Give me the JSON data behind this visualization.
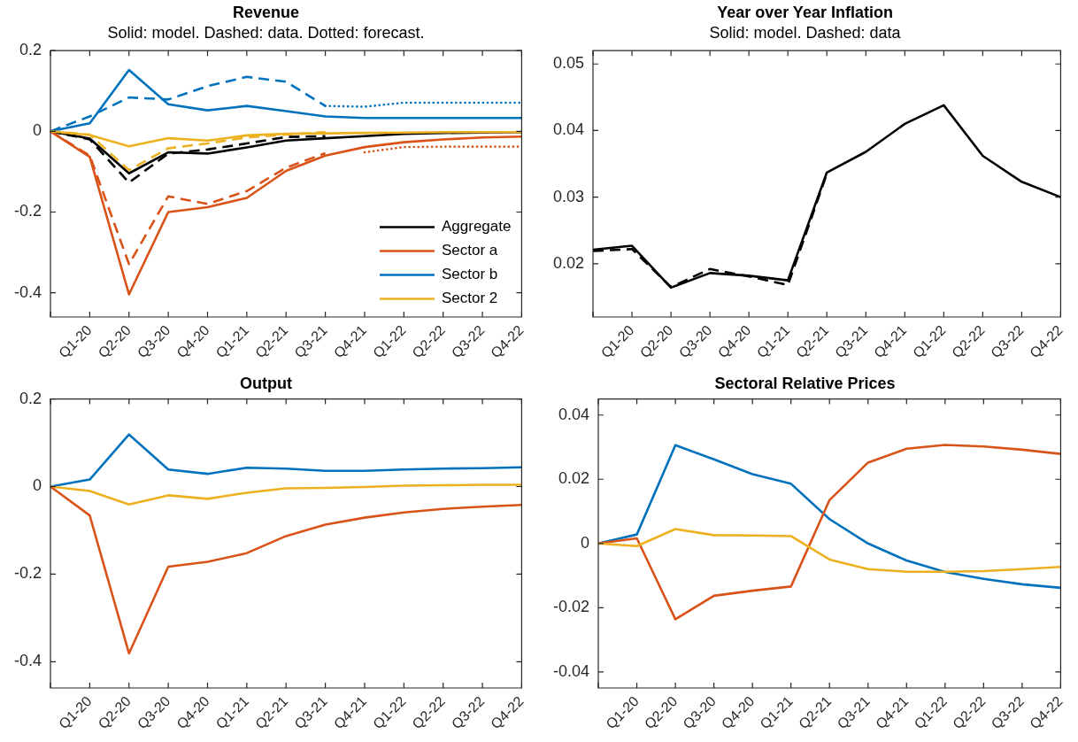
{
  "chart_data": [
    {
      "type": "line",
      "title": "Revenue",
      "subtitle": "Solid: model. Dashed: data. Dotted: forecast.",
      "categories": [
        null,
        "Q1-20",
        "Q2-20",
        "Q3-20",
        "Q4-20",
        "Q1-21",
        "Q2-21",
        "Q3-21",
        "Q4-21",
        "Q1-22",
        "Q2-22",
        "Q3-22",
        "Q4-22"
      ],
      "ylim": [
        -0.46,
        0.2
      ],
      "yticks": [
        -0.4,
        -0.2,
        0,
        0.2
      ],
      "grid": false,
      "legend": "bottom right",
      "marker": "none",
      "series": [
        {
          "name": "Aggregate",
          "color": "#000000",
          "values": [
            0,
            -0.018,
            -0.104,
            -0.052,
            -0.055,
            -0.04,
            -0.023,
            -0.017,
            -0.012,
            -0.006,
            -0.004,
            -0.003,
            -0.002
          ]
        },
        {
          "name": "Sector a",
          "color": "#d95319",
          "values": [
            0,
            -0.063,
            -0.404,
            -0.2,
            -0.188,
            -0.165,
            -0.098,
            -0.06,
            -0.039,
            -0.027,
            -0.02,
            -0.015,
            -0.013
          ]
        },
        {
          "name": "Sector b",
          "color": "#0072bd",
          "values": [
            0,
            0.02,
            0.152,
            0.067,
            0.052,
            0.063,
            0.05,
            0.037,
            0.033,
            0.033,
            0.033,
            0.033,
            0.033
          ]
        },
        {
          "name": "Sector 2",
          "color": "#edb120",
          "values": [
            0,
            -0.009,
            -0.037,
            -0.017,
            -0.023,
            -0.01,
            -0.006,
            -0.005,
            -0.004,
            -0.003,
            -0.002,
            -0.002,
            -0.002
          ]
        },
        {
          "color": "#000000",
          "line_style": "dashed",
          "values": [
            0,
            -0.02,
            -0.127,
            -0.055,
            -0.045,
            -0.03,
            -0.014,
            -0.012,
            null,
            null,
            null,
            null,
            null
          ]
        },
        {
          "color": "#d95319",
          "line_style": "dashed",
          "values": [
            0,
            -0.06,
            -0.329,
            -0.161,
            -0.18,
            -0.148,
            -0.09,
            -0.054,
            null,
            null,
            null,
            null,
            null
          ]
        },
        {
          "color": "#0072bd",
          "line_style": "dashed",
          "values": [
            0,
            0.037,
            0.084,
            0.079,
            0.112,
            0.135,
            0.123,
            0.063,
            null,
            null,
            null,
            null,
            null
          ]
        },
        {
          "color": "#edb120",
          "line_style": "dashed",
          "values": [
            0,
            -0.008,
            -0.096,
            -0.042,
            -0.03,
            -0.015,
            -0.008,
            -0.002,
            null,
            null,
            null,
            null,
            null
          ]
        },
        {
          "color": "#d95319",
          "line_style": "dotted",
          "values": [
            null,
            null,
            null,
            null,
            null,
            null,
            null,
            null,
            -0.052,
            -0.039,
            -0.038,
            -0.038,
            -0.038
          ]
        },
        {
          "color": "#0072bd",
          "line_style": "dotted",
          "values": [
            null,
            null,
            null,
            null,
            null,
            null,
            null,
            0.063,
            0.061,
            0.071,
            0.071,
            0.071,
            0.071
          ]
        }
      ]
    },
    {
      "type": "line",
      "title": "Year over Year Inflation",
      "subtitle": "Solid: model. Dashed: data",
      "categories": [
        null,
        "Q1-20",
        "Q2-20",
        "Q3-20",
        "Q4-20",
        "Q1-21",
        "Q2-21",
        "Q3-21",
        "Q4-21",
        "Q1-22",
        "Q2-22",
        "Q3-22",
        "Q4-22"
      ],
      "ylim": [
        0.012,
        0.052
      ],
      "yticks": [
        0.02,
        0.03,
        0.04,
        0.05
      ],
      "grid": false,
      "marker": "none",
      "series": [
        {
          "color": "#000000",
          "values": [
            0.0221,
            0.0227,
            0.0164,
            0.0186,
            0.0182,
            0.0175,
            0.0337,
            0.0368,
            0.041,
            0.0438,
            0.0362,
            0.0323,
            0.03
          ]
        },
        {
          "color": "#000000",
          "line_style": "dashed",
          "values": [
            0.0219,
            0.0222,
            0.0165,
            0.0192,
            0.0181,
            0.0168,
            0.0335,
            null,
            null,
            null,
            null,
            null,
            null
          ]
        }
      ]
    },
    {
      "type": "line",
      "title": "Output",
      "categories": [
        null,
        "Q1-20",
        "Q2-20",
        "Q3-20",
        "Q4-20",
        "Q1-21",
        "Q2-21",
        "Q3-21",
        "Q4-21",
        "Q1-22",
        "Q2-22",
        "Q3-22",
        "Q4-22"
      ],
      "ylim": [
        -0.46,
        0.2
      ],
      "yticks": [
        -0.4,
        -0.2,
        0,
        0.2
      ],
      "grid": false,
      "marker": "none",
      "series": [
        {
          "color": "#0072bd",
          "values": [
            0,
            0.016,
            0.119,
            0.039,
            0.029,
            0.043,
            0.041,
            0.036,
            0.036,
            0.039,
            0.041,
            0.042,
            0.044
          ]
        },
        {
          "color": "#edb120",
          "values": [
            0,
            -0.01,
            -0.041,
            -0.02,
            -0.028,
            -0.014,
            -0.004,
            -0.003,
            -0.001,
            0.002,
            0.003,
            0.004,
            0.004
          ]
        },
        {
          "color": "#d95319",
          "values": [
            0,
            -0.066,
            -0.381,
            -0.183,
            -0.172,
            -0.152,
            -0.113,
            -0.087,
            -0.071,
            -0.059,
            -0.051,
            -0.046,
            -0.042
          ]
        }
      ]
    },
    {
      "type": "line",
      "title": "Sectoral Relative Prices",
      "categories": [
        null,
        "Q1-20",
        "Q2-20",
        "Q3-20",
        "Q4-20",
        "Q1-21",
        "Q2-21",
        "Q3-21",
        "Q4-21",
        "Q1-22",
        "Q2-22",
        "Q3-22",
        "Q4-22"
      ],
      "ylim": [
        -0.045,
        0.045
      ],
      "yticks": [
        -0.04,
        -0.02,
        0,
        0.02,
        0.04
      ],
      "grid": false,
      "marker": "none",
      "series": [
        {
          "color": "#0072bd",
          "values": [
            0,
            0.0028,
            0.0306,
            0.0262,
            0.0216,
            0.0186,
            0.0076,
            0,
            -0.0053,
            -0.0089,
            -0.011,
            -0.0127,
            -0.0138
          ]
        },
        {
          "color": "#d95319",
          "values": [
            0,
            0.0016,
            -0.0236,
            -0.0163,
            -0.0147,
            -0.0134,
            0.0135,
            0.0252,
            0.0295,
            0.0307,
            0.0302,
            0.0292,
            0.0279
          ]
        },
        {
          "color": "#edb120",
          "values": [
            0,
            -0.0008,
            0.0045,
            0.0026,
            0.0025,
            0.0023,
            -0.005,
            -0.008,
            -0.0088,
            -0.0088,
            -0.0086,
            -0.008,
            -0.0073
          ]
        }
      ]
    }
  ]
}
